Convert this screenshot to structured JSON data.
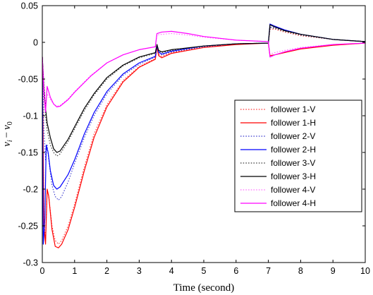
{
  "chart_data": {
    "type": "line",
    "title": "",
    "xlabel": "Time (second)",
    "ylabel": "v_i − v_0",
    "ylabel_parts": {
      "v1": "v",
      "s1": "i",
      "minus": "−",
      "v2": "v",
      "s2": "0"
    },
    "xlim": [
      0,
      10
    ],
    "ylim": [
      -0.3,
      0.05
    ],
    "x_ticks": [
      0,
      1,
      2,
      3,
      4,
      5,
      6,
      7,
      8,
      9,
      10
    ],
    "x_tick_labels": [
      "0",
      "1",
      "2",
      "3",
      "4",
      "5",
      "6",
      "7",
      "8",
      "9",
      "10"
    ],
    "y_ticks": [
      0.05,
      0,
      -0.05,
      -0.1,
      -0.15,
      -0.2,
      -0.25,
      -0.3
    ],
    "y_tick_labels": [
      "0.05",
      "0",
      "-0.05",
      "-0.1",
      "-0.15",
      "-0.2",
      "-0.25",
      "-0.3"
    ],
    "grid": false,
    "legend_position": "right-middle",
    "series": [
      {
        "name": "follower 1-V",
        "color": "#ff3333",
        "style": "dotted",
        "points": [
          [
            0,
            -0.02
          ],
          [
            0.05,
            -0.24
          ],
          [
            0.1,
            -0.27
          ],
          [
            0.15,
            -0.2
          ],
          [
            0.2,
            -0.21
          ],
          [
            0.3,
            -0.25
          ],
          [
            0.4,
            -0.27
          ],
          [
            0.5,
            -0.275
          ],
          [
            0.6,
            -0.27
          ],
          [
            0.8,
            -0.25
          ],
          [
            1.0,
            -0.22
          ],
          [
            1.3,
            -0.17
          ],
          [
            1.6,
            -0.125
          ],
          [
            2.0,
            -0.085
          ],
          [
            2.5,
            -0.052
          ],
          [
            3.0,
            -0.033
          ],
          [
            3.5,
            -0.022
          ],
          [
            3.55,
            -0.005
          ],
          [
            3.6,
            -0.016
          ],
          [
            3.7,
            -0.019
          ],
          [
            4.0,
            -0.014
          ],
          [
            5.0,
            -0.006
          ],
          [
            6.0,
            -0.002
          ],
          [
            7.0,
            -0.001
          ],
          [
            7.05,
            0.018
          ],
          [
            7.2,
            0.018
          ],
          [
            7.5,
            0.014
          ],
          [
            8.0,
            0.009
          ],
          [
            9.0,
            0.004
          ],
          [
            10,
            0.001
          ]
        ]
      },
      {
        "name": "follower 1-H",
        "color": "#ff0000",
        "style": "solid",
        "points": [
          [
            0,
            -0.02
          ],
          [
            0.05,
            -0.25
          ],
          [
            0.1,
            -0.275
          ],
          [
            0.15,
            -0.2
          ],
          [
            0.2,
            -0.21
          ],
          [
            0.3,
            -0.255
          ],
          [
            0.4,
            -0.278
          ],
          [
            0.5,
            -0.28
          ],
          [
            0.6,
            -0.275
          ],
          [
            0.8,
            -0.255
          ],
          [
            1.0,
            -0.225
          ],
          [
            1.3,
            -0.175
          ],
          [
            1.6,
            -0.13
          ],
          [
            2.0,
            -0.088
          ],
          [
            2.5,
            -0.054
          ],
          [
            3.0,
            -0.034
          ],
          [
            3.5,
            -0.023
          ],
          [
            3.55,
            -0.006
          ],
          [
            3.6,
            -0.018
          ],
          [
            3.7,
            -0.021
          ],
          [
            4.0,
            -0.015
          ],
          [
            5.0,
            -0.007
          ],
          [
            6.0,
            -0.003
          ],
          [
            7.0,
            -0.001
          ],
          [
            7.05,
            -0.018
          ],
          [
            7.2,
            -0.017
          ],
          [
            7.5,
            -0.014
          ],
          [
            8.0,
            -0.009
          ],
          [
            9.0,
            -0.004
          ],
          [
            10,
            -0.001
          ]
        ]
      },
      {
        "name": "follower 2-V",
        "color": "#3333cc",
        "style": "dotted",
        "points": [
          [
            0,
            -0.02
          ],
          [
            0.05,
            -0.12
          ],
          [
            0.1,
            -0.16
          ],
          [
            0.15,
            -0.14
          ],
          [
            0.2,
            -0.16
          ],
          [
            0.3,
            -0.195
          ],
          [
            0.4,
            -0.21
          ],
          [
            0.5,
            -0.215
          ],
          [
            0.6,
            -0.21
          ],
          [
            0.8,
            -0.19
          ],
          [
            1.0,
            -0.165
          ],
          [
            1.3,
            -0.13
          ],
          [
            1.6,
            -0.1
          ],
          [
            2.0,
            -0.07
          ],
          [
            2.5,
            -0.045
          ],
          [
            3.0,
            -0.03
          ],
          [
            3.5,
            -0.02
          ],
          [
            3.55,
            -0.004
          ],
          [
            3.6,
            -0.014
          ],
          [
            3.7,
            -0.017
          ],
          [
            4.0,
            -0.013
          ],
          [
            5.0,
            -0.006
          ],
          [
            6.0,
            -0.002
          ],
          [
            7.0,
            -0.001
          ],
          [
            7.05,
            0.021
          ],
          [
            7.2,
            0.02
          ],
          [
            7.5,
            0.016
          ],
          [
            8.0,
            0.01
          ],
          [
            9.0,
            0.004
          ],
          [
            10,
            0.001
          ]
        ]
      },
      {
        "name": "follower 2-H",
        "color": "#0000ff",
        "style": "solid",
        "points": [
          [
            0,
            -0.02
          ],
          [
            0.03,
            -0.275
          ],
          [
            0.08,
            -0.24
          ],
          [
            0.12,
            -0.14
          ],
          [
            0.18,
            -0.15
          ],
          [
            0.25,
            -0.175
          ],
          [
            0.35,
            -0.195
          ],
          [
            0.45,
            -0.2
          ],
          [
            0.55,
            -0.197
          ],
          [
            0.8,
            -0.18
          ],
          [
            1.0,
            -0.16
          ],
          [
            1.3,
            -0.125
          ],
          [
            1.6,
            -0.096
          ],
          [
            2.0,
            -0.067
          ],
          [
            2.5,
            -0.043
          ],
          [
            3.0,
            -0.028
          ],
          [
            3.5,
            -0.019
          ],
          [
            3.55,
            -0.004
          ],
          [
            3.6,
            -0.013
          ],
          [
            3.7,
            -0.016
          ],
          [
            4.0,
            -0.012
          ],
          [
            5.0,
            -0.005
          ],
          [
            6.0,
            -0.002
          ],
          [
            7.0,
            -0.001
          ],
          [
            7.05,
            0.025
          ],
          [
            7.2,
            0.022
          ],
          [
            7.5,
            0.017
          ],
          [
            8.0,
            0.011
          ],
          [
            9.0,
            0.004
          ],
          [
            10,
            0.001
          ]
        ]
      },
      {
        "name": "follower 3-V",
        "color": "#333333",
        "style": "dotted",
        "points": [
          [
            0,
            -0.02
          ],
          [
            0.05,
            -0.07
          ],
          [
            0.1,
            -0.1
          ],
          [
            0.15,
            -0.12
          ],
          [
            0.25,
            -0.14
          ],
          [
            0.35,
            -0.15
          ],
          [
            0.45,
            -0.155
          ],
          [
            0.55,
            -0.152
          ],
          [
            0.8,
            -0.135
          ],
          [
            1.0,
            -0.118
          ],
          [
            1.3,
            -0.093
          ],
          [
            1.6,
            -0.072
          ],
          [
            2.0,
            -0.05
          ],
          [
            2.5,
            -0.032
          ],
          [
            3.0,
            -0.021
          ],
          [
            3.5,
            -0.015
          ],
          [
            3.55,
            -0.003
          ],
          [
            3.6,
            -0.011
          ],
          [
            3.7,
            -0.014
          ],
          [
            4.0,
            -0.011
          ],
          [
            5.0,
            -0.005
          ],
          [
            6.0,
            -0.002
          ],
          [
            7.0,
            -0.001
          ],
          [
            7.05,
            0.02
          ],
          [
            7.2,
            0.019
          ],
          [
            7.5,
            0.015
          ],
          [
            8.0,
            0.01
          ],
          [
            9.0,
            0.004
          ],
          [
            10,
            0.001
          ]
        ]
      },
      {
        "name": "follower 3-H",
        "color": "#000000",
        "style": "solid",
        "points": [
          [
            0,
            -0.02
          ],
          [
            0.05,
            -0.06
          ],
          [
            0.1,
            -0.09
          ],
          [
            0.15,
            -0.11
          ],
          [
            0.25,
            -0.13
          ],
          [
            0.35,
            -0.145
          ],
          [
            0.45,
            -0.15
          ],
          [
            0.55,
            -0.148
          ],
          [
            0.8,
            -0.132
          ],
          [
            1.0,
            -0.115
          ],
          [
            1.3,
            -0.09
          ],
          [
            1.6,
            -0.07
          ],
          [
            2.0,
            -0.048
          ],
          [
            2.5,
            -0.031
          ],
          [
            3.0,
            -0.02
          ],
          [
            3.5,
            -0.014
          ],
          [
            3.55,
            -0.003
          ],
          [
            3.6,
            -0.011
          ],
          [
            3.7,
            -0.013
          ],
          [
            4.0,
            -0.01
          ],
          [
            5.0,
            -0.005
          ],
          [
            6.0,
            -0.002
          ],
          [
            7.0,
            -0.001
          ],
          [
            7.05,
            0.024
          ],
          [
            7.2,
            0.021
          ],
          [
            7.5,
            0.016
          ],
          [
            8.0,
            0.011
          ],
          [
            9.0,
            0.004
          ],
          [
            10,
            0.001
          ]
        ]
      },
      {
        "name": "follower 4-V",
        "color": "#ff66ff",
        "style": "dotted",
        "points": [
          [
            0,
            -0.02
          ],
          [
            0.05,
            -0.06
          ],
          [
            0.1,
            -0.085
          ],
          [
            0.15,
            -0.07
          ],
          [
            0.25,
            -0.078
          ],
          [
            0.35,
            -0.084
          ],
          [
            0.45,
            -0.087
          ],
          [
            0.55,
            -0.086
          ],
          [
            0.8,
            -0.077
          ],
          [
            1.0,
            -0.067
          ],
          [
            1.5,
            -0.045
          ],
          [
            2.0,
            -0.028
          ],
          [
            2.5,
            -0.017
          ],
          [
            3.0,
            -0.01
          ],
          [
            3.5,
            -0.006
          ],
          [
            3.55,
            0.01
          ],
          [
            3.7,
            0.011
          ],
          [
            4.0,
            0.012
          ],
          [
            4.5,
            0.01
          ],
          [
            5.0,
            0.007
          ],
          [
            6.0,
            0.003
          ],
          [
            7.0,
            0.001
          ],
          [
            7.05,
            -0.016
          ],
          [
            7.2,
            -0.014
          ],
          [
            7.5,
            -0.011
          ],
          [
            8.0,
            -0.007
          ],
          [
            9.0,
            -0.003
          ],
          [
            10,
            -0.001
          ]
        ]
      },
      {
        "name": "follower 4-H",
        "color": "#ff00ff",
        "style": "solid",
        "points": [
          [
            0,
            -0.02
          ],
          [
            0.05,
            -0.07
          ],
          [
            0.1,
            -0.095
          ],
          [
            0.15,
            -0.06
          ],
          [
            0.25,
            -0.075
          ],
          [
            0.35,
            -0.084
          ],
          [
            0.45,
            -0.088
          ],
          [
            0.55,
            -0.087
          ],
          [
            0.8,
            -0.078
          ],
          [
            1.0,
            -0.068
          ],
          [
            1.5,
            -0.046
          ],
          [
            2.0,
            -0.028
          ],
          [
            2.5,
            -0.017
          ],
          [
            3.0,
            -0.01
          ],
          [
            3.5,
            -0.006
          ],
          [
            3.55,
            0.012
          ],
          [
            3.7,
            0.014
          ],
          [
            4.0,
            0.015
          ],
          [
            4.5,
            0.012
          ],
          [
            5.0,
            0.008
          ],
          [
            6.0,
            0.003
          ],
          [
            7.0,
            0.001
          ],
          [
            7.05,
            -0.02
          ],
          [
            7.2,
            -0.017
          ],
          [
            7.5,
            -0.013
          ],
          [
            8.0,
            -0.008
          ],
          [
            9.0,
            -0.003
          ],
          [
            10,
            -0.001
          ]
        ]
      }
    ]
  }
}
